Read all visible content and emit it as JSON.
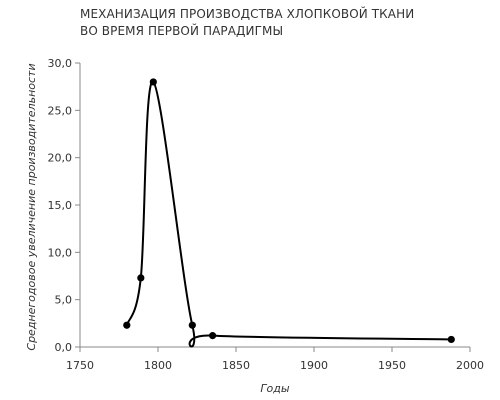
{
  "chart_data": {
    "type": "line",
    "title_lines": [
      "МЕХАНИЗАЦИЯ ПРОИЗВОДСТВА ХЛОПКОВОЙ ТКАНИ",
      "ВО ВРЕМЯ ПЕРВОЙ ПАРАДИГМЫ"
    ],
    "xlabel": "Годы",
    "ylabel": "Среднегодовое увеличение производительности",
    "xlim": [
      1750,
      2000
    ],
    "ylim": [
      0,
      30
    ],
    "x_ticks": [
      1750,
      1800,
      1850,
      1900,
      1950,
      2000
    ],
    "x_tick_labels": [
      "1750",
      "1800",
      "1850",
      "1900",
      "1950",
      "2000"
    ],
    "y_ticks": [
      0,
      5,
      10,
      15,
      20,
      25,
      30
    ],
    "y_tick_labels": [
      "0,0",
      "5,0",
      "10,0",
      "15,0",
      "20,0",
      "25,0",
      "30,0"
    ],
    "grid": false,
    "smooth": true,
    "series_color": "#000000",
    "points": [
      {
        "x": 1780,
        "y": 2.3
      },
      {
        "x": 1789,
        "y": 7.3
      },
      {
        "x": 1797,
        "y": 28.0
      },
      {
        "x": 1822,
        "y": 2.3
      },
      {
        "x": 1835,
        "y": 1.2
      },
      {
        "x": 1988,
        "y": 0.8
      }
    ]
  }
}
